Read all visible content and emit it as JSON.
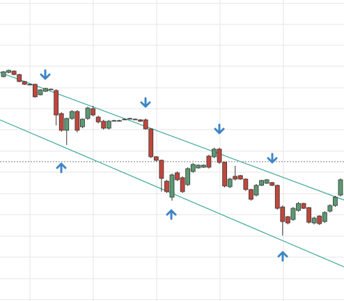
{
  "chart_data": {
    "type": "candlestick",
    "open": [
      322,
      328,
      330,
      325,
      315,
      311,
      311,
      296,
      301,
      304,
      302,
      269,
      245,
      262,
      272,
      250,
      262,
      276,
      264,
      258,
      248,
      259,
      259,
      261,
      262,
      261,
      260,
      260,
      247,
      207,
      202,
      172,
      149,
      184,
      177,
      167,
      186,
      191,
      192,
      208,
      207,
      218,
      199,
      164,
      179,
      180,
      175,
      160,
      152,
      166,
      169,
      170,
      166,
      135,
      121,
      117,
      130,
      140,
      134,
      112,
      122,
      114,
      129,
      137,
      152
    ],
    "high": [
      330,
      332,
      331,
      326,
      316,
      312,
      312,
      304,
      306,
      305,
      304,
      271,
      263,
      274,
      274,
      262,
      279,
      280,
      266,
      260,
      260,
      260,
      260,
      262,
      263,
      262,
      261,
      262,
      248,
      208,
      203,
      174,
      183,
      186,
      179,
      192,
      198,
      196,
      196,
      210,
      220,
      220,
      200,
      177,
      194,
      181,
      176,
      161,
      168,
      174,
      175,
      171,
      167,
      137,
      122,
      135,
      142,
      141,
      135,
      121,
      123,
      129,
      139,
      151,
      176
    ],
    "low": [
      321,
      327,
      324,
      314,
      310,
      310,
      292,
      295,
      300,
      303,
      252,
      243,
      224,
      260,
      242,
      248,
      260,
      265,
      255,
      246,
      246,
      258,
      258,
      260,
      261,
      260,
      257,
      246,
      205,
      200,
      157,
      155,
      144,
      172,
      155,
      165,
      184,
      190,
      191,
      190,
      205,
      197,
      163,
      162,
      173,
      174,
      158,
      144,
      150,
      165,
      168,
      165,
      131,
      94,
      110,
      115,
      128,
      132,
      111,
      110,
      109,
      112,
      127,
      135,
      150
    ],
    "close": [
      329,
      331,
      325,
      315,
      311,
      311,
      293,
      303,
      305,
      304,
      267,
      245,
      262,
      272,
      245,
      261,
      277,
      267,
      257,
      248,
      258,
      259,
      259,
      261,
      262,
      261,
      258,
      247,
      207,
      202,
      176,
      157,
      181,
      174,
      157,
      190,
      196,
      195,
      195,
      192,
      218,
      199,
      165,
      175,
      175,
      175,
      160,
      146,
      166,
      173,
      174,
      166,
      133,
      114,
      112,
      133,
      140,
      133,
      113,
      119,
      111,
      127,
      137,
      149,
      174
    ],
    "up_color": "#5b9a72",
    "down_color": "#c0463c",
    "ylim": [
      0,
      432
    ],
    "yticks": [
      2,
      32,
      63,
      93,
      124,
      154,
      185,
      215,
      246,
      276,
      306,
      337,
      367,
      397,
      427
    ],
    "grid": true
  }
}
